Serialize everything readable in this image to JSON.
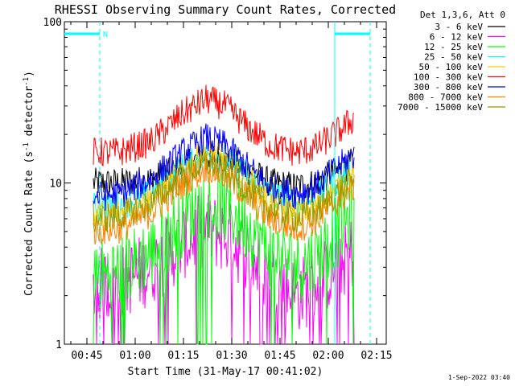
{
  "chart_data": {
    "type": "line",
    "title": "RHESSI Observing Summary Count Rates, Corrected",
    "xlabel": "Start Time (31-May-17 00:41:02)",
    "ylabel_parts": [
      "Corrected Count Rate (s",
      "-1",
      " detector",
      "-1",
      ")"
    ],
    "y_scale": "log",
    "ylim": [
      1,
      100
    ],
    "xlim_minutes": [
      38,
      138
    ],
    "x_ticks": [
      {
        "minute": 45,
        "label": "00:45"
      },
      {
        "minute": 60,
        "label": "01:00"
      },
      {
        "minute": 75,
        "label": "01:15"
      },
      {
        "minute": 90,
        "label": "01:30"
      },
      {
        "minute": 105,
        "label": "01:45"
      },
      {
        "minute": 120,
        "label": "02:00"
      },
      {
        "minute": 135,
        "label": "02:15"
      }
    ],
    "y_ticks": [
      {
        "value": 1,
        "label": "1"
      },
      {
        "value": 10,
        "label": "10"
      },
      {
        "value": 100,
        "label": "100"
      }
    ],
    "legend_title": "Det 1,3,6, Att 0",
    "legend_position": "right",
    "series": [
      {
        "name": "3 - 6 keV",
        "color": "#000000",
        "x": [
          47,
          55,
          65,
          75,
          82,
          88,
          95,
          102,
          110,
          116,
          122,
          128
        ],
        "y": [
          10,
          10,
          10.5,
          12.5,
          15,
          14,
          12,
          10,
          9.5,
          10,
          11.5,
          13.5
        ]
      },
      {
        "name": "6 - 12 keV",
        "color": "#ff00ff",
        "x": [
          47,
          55,
          65,
          75,
          82,
          88,
          95,
          102,
          110,
          116,
          122,
          128
        ],
        "y": [
          2.3,
          2.4,
          3,
          4.3,
          5.2,
          4.7,
          3.6,
          2.6,
          2,
          2.3,
          3,
          3.8
        ]
      },
      {
        "name": "12 - 25 keV",
        "color": "#00ff00",
        "x": [
          47,
          55,
          65,
          75,
          82,
          88,
          95,
          102,
          110,
          116,
          122,
          128
        ],
        "y": [
          2.6,
          2.8,
          3.7,
          6,
          7.8,
          7,
          5.5,
          3.8,
          3,
          3.4,
          4.8,
          6.5
        ]
      },
      {
        "name": "25 - 50 keV",
        "color": "#00ffff",
        "x": [
          47,
          55,
          65,
          75,
          82,
          88,
          95,
          102,
          110,
          116,
          122,
          128
        ],
        "y": [
          7,
          7.2,
          8.5,
          12.5,
          15,
          14,
          11,
          8.5,
          7.5,
          8,
          10,
          12.5
        ]
      },
      {
        "name": "50 - 100 keV",
        "color": "#ffcc00",
        "x": [
          47,
          55,
          65,
          75,
          82,
          88,
          95,
          102,
          110,
          116,
          122,
          128
        ],
        "y": [
          6.2,
          6.5,
          8,
          12,
          15.5,
          14,
          10.5,
          7.5,
          6.5,
          7,
          9,
          11.5
        ]
      },
      {
        "name": "100 - 300 keV",
        "color": "#ff0000",
        "x": [
          47,
          55,
          65,
          75,
          82,
          88,
          95,
          102,
          110,
          116,
          122,
          128
        ],
        "y": [
          15.5,
          15.5,
          18,
          27,
          33,
          30,
          22,
          17,
          15.5,
          16.5,
          20,
          25
        ]
      },
      {
        "name": "300 - 800 keV",
        "color": "#0000ff",
        "x": [
          47,
          55,
          65,
          75,
          82,
          88,
          95,
          102,
          110,
          116,
          122,
          128
        ],
        "y": [
          8.2,
          8.5,
          10.5,
          15.5,
          19,
          17,
          12.5,
          9.5,
          8.5,
          9.5,
          12,
          15
        ]
      },
      {
        "name": "800 - 7000 keV",
        "color": "#ff8000",
        "x": [
          47,
          55,
          65,
          75,
          82,
          88,
          95,
          102,
          110,
          116,
          122,
          128
        ],
        "y": [
          5,
          5.2,
          6.5,
          10,
          12.5,
          11,
          8.2,
          6,
          5.2,
          5.8,
          7.5,
          9.5
        ]
      },
      {
        "name": "7000 - 15000 keV",
        "color": "#999900",
        "x": [
          47,
          55,
          65,
          75,
          82,
          88,
          95,
          102,
          110,
          116,
          122,
          128
        ],
        "y": [
          6,
          6.2,
          7.5,
          11,
          13.5,
          12,
          9,
          7,
          6,
          6.5,
          8.5,
          10.5
        ]
      }
    ],
    "attenuator_markers": [
      {
        "label": "N",
        "start_minute": 38,
        "end_minute": 49
      },
      {
        "label": "",
        "start_minute": 122,
        "end_minute": 133
      }
    ],
    "marker_color": "#00ffff",
    "grid": false
  },
  "timestamp": "1-Sep-2022 03:40"
}
